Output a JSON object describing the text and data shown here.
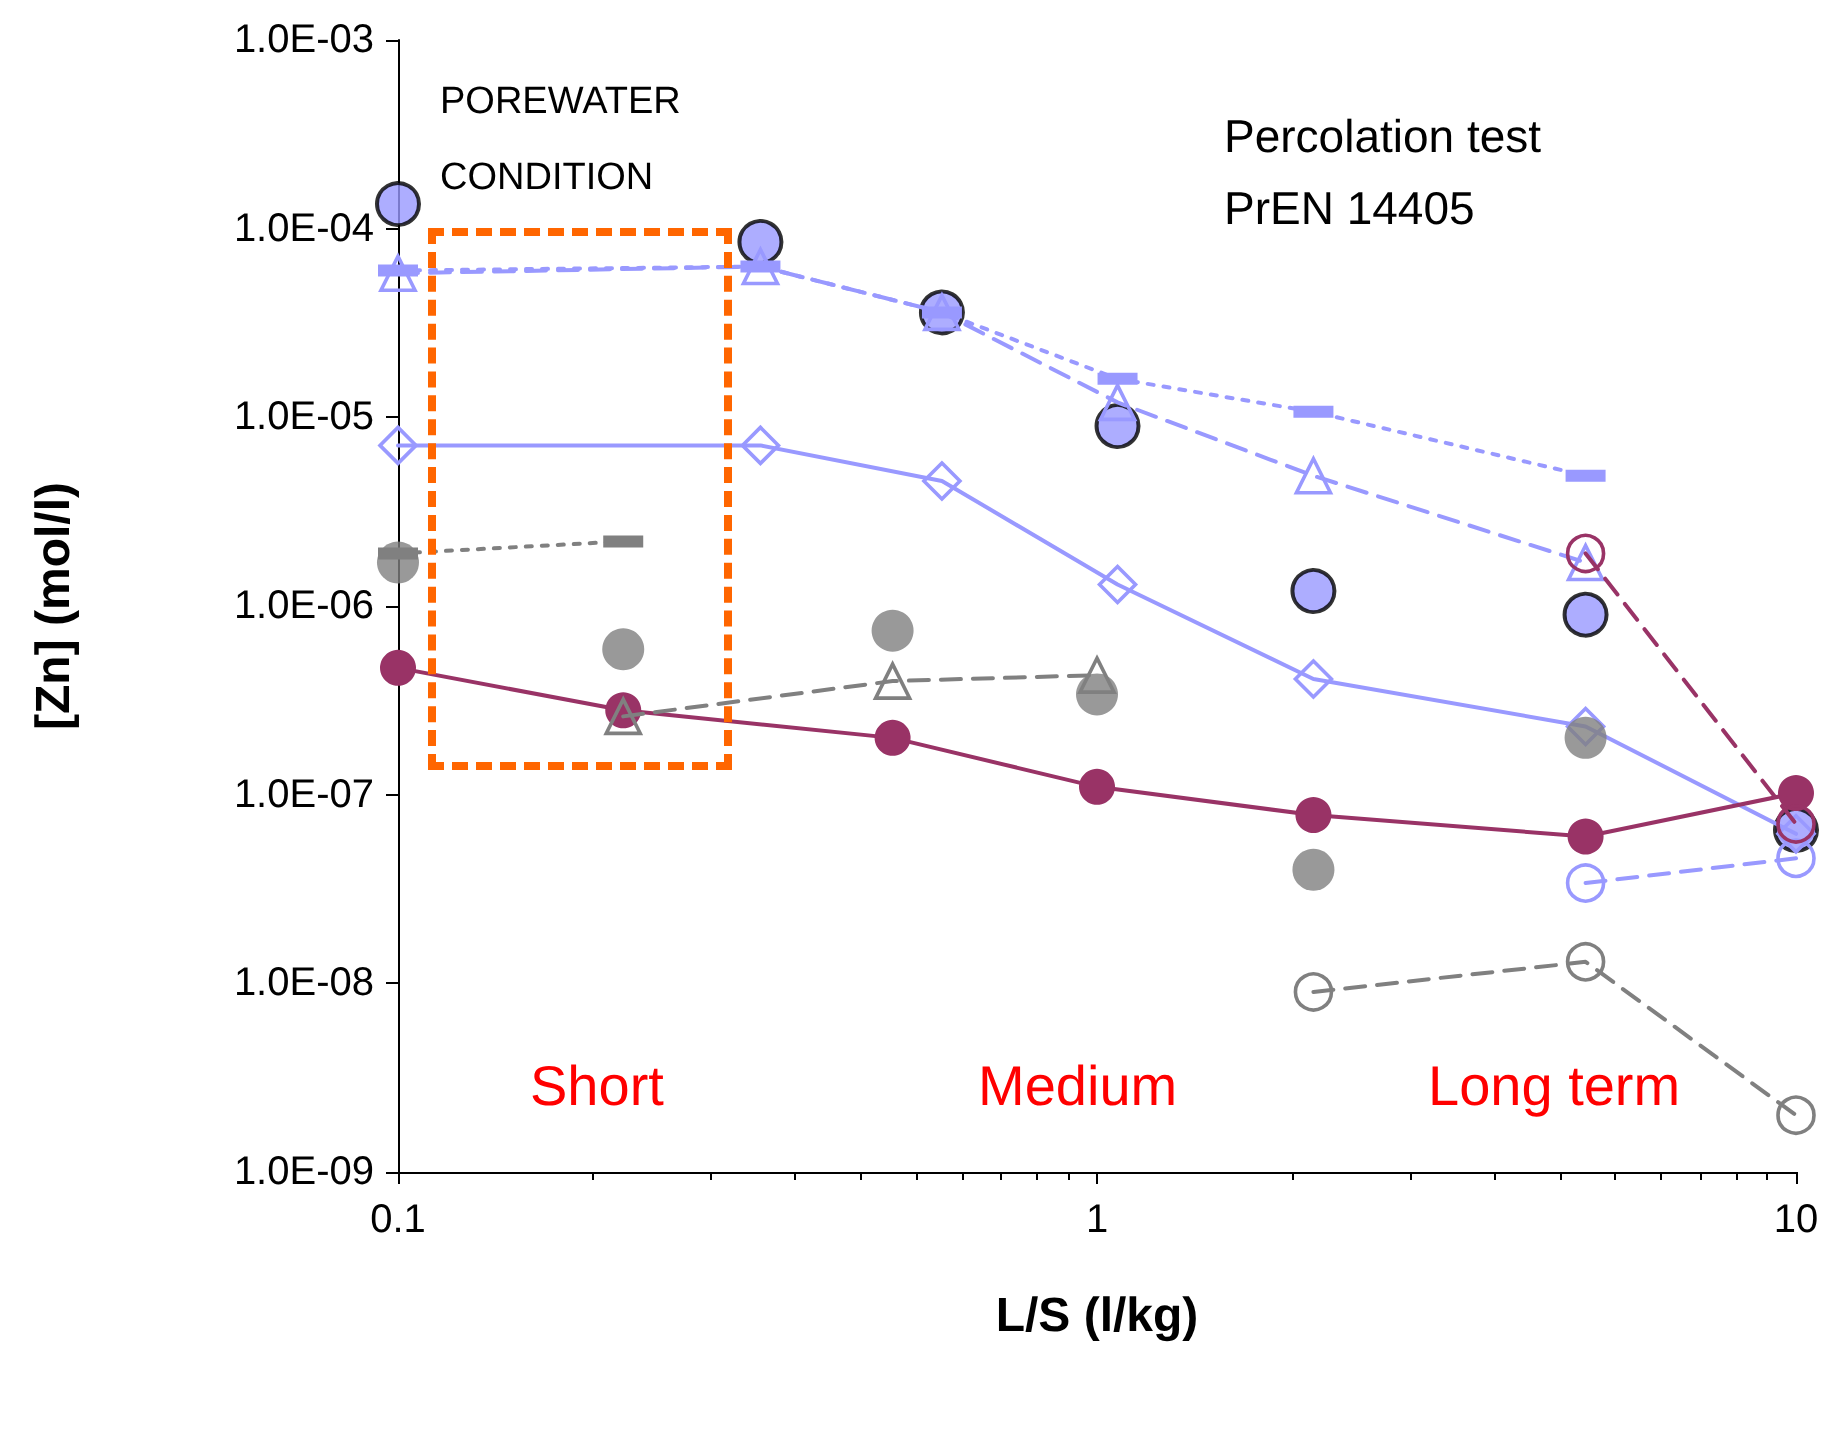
{
  "chart_data": {
    "type": "line",
    "xlabel": "L/S (l/kg)",
    "ylabel": "[Zn] (mol/l)",
    "log": "xy",
    "grid": false,
    "xlim": [
      0.1,
      10
    ],
    "xticks": [
      0.1,
      1,
      10
    ],
    "ylim": [
      1e-09,
      0.001
    ],
    "yticks": [
      {
        "value": 1e-09,
        "label": "1.0E-09"
      },
      {
        "value": 1e-08,
        "label": "1.0E-08"
      },
      {
        "value": 1e-07,
        "label": "1.0E-07"
      },
      {
        "value": 1e-06,
        "label": "1.0E-06"
      },
      {
        "value": 1e-05,
        "label": "1.0E-05"
      },
      {
        "value": 0.0001,
        "label": "1.0E-04"
      },
      {
        "value": 0.001,
        "label": "1.0E-03"
      }
    ],
    "annotations": [
      "POREWATER\nCONDITION",
      "Percolation test\nPrEN 14405",
      "Short",
      "Medium",
      "Long term"
    ],
    "series": [
      {
        "type": "scatter",
        "color": "#9999ff",
        "marker": "circle",
        "x": [
          0.1,
          0.33,
          0.6,
          1.07,
          2.04,
          5,
          10
        ],
        "values": [
          0.000135,
          8.5e-05,
          3.6e-05,
          9e-06,
          1.2e-06,
          9e-07,
          6.5e-08
        ]
      },
      {
        "color": "#9999ff",
        "marker": "triangle",
        "line_style": "dashed",
        "x": [
          0.1,
          0.33,
          0.6,
          1.07,
          2.04,
          5
        ],
        "values": [
          5.8e-05,
          6.3e-05,
          3.6e-05,
          1.2e-05,
          4.9e-06,
          1.7e-06
        ]
      },
      {
        "color": "#9999ff",
        "marker": "square",
        "line_style": "dotted",
        "x": [
          0.1,
          0.33,
          0.6,
          1.07,
          2.04,
          5
        ],
        "values": [
          6e-05,
          6.3e-05,
          3.6e-05,
          1.6e-05,
          1.07e-05,
          4.9e-06
        ]
      },
      {
        "color": "#9999ff",
        "marker": "diamond",
        "line_style": "solid",
        "x": [
          0.1,
          0.33,
          0.6,
          1.07,
          2.04,
          5,
          10
        ],
        "values": [
          7.1e-06,
          7.1e-06,
          4.6e-06,
          1.3e-06,
          4.1e-07,
          2.3e-07,
          6.2e-08
        ]
      },
      {
        "color": "#9999ff",
        "marker": "circle",
        "line_style": "dashed",
        "x": [
          5,
          10
        ],
        "values": [
          3.4e-08,
          4.6e-08
        ]
      },
      {
        "color": "#993366",
        "marker": "circle",
        "line_style": "solid",
        "x": [
          0.1,
          0.21,
          0.51,
          1,
          2.04,
          5,
          10
        ],
        "values": [
          4.7e-07,
          2.8e-07,
          2e-07,
          1.1e-07,
          7.8e-08,
          6e-08,
          1.02e-07
        ]
      },
      {
        "color": "#993366",
        "marker": "circle",
        "line_style": "dashed",
        "x": [
          5,
          10
        ],
        "values": [
          1.9e-06,
          7e-08
        ]
      },
      {
        "type": "scatter",
        "color": "#808080",
        "marker": "circle",
        "x": [
          0.1,
          0.21,
          0.51,
          1,
          2.04,
          5
        ],
        "values": [
          1.7e-06,
          5.9e-07,
          7.4e-07,
          3.4e-07,
          4e-08,
          2e-07
        ]
      },
      {
        "color": "#808080",
        "marker": "square",
        "line_style": "dotted",
        "x": [
          0.1,
          0.21
        ],
        "values": [
          1.9e-06,
          2.2e-06
        ]
      },
      {
        "color": "#808080",
        "marker": "triangle",
        "line_style": "dashed",
        "x": [
          0.21,
          0.51,
          1
        ],
        "values": [
          2.6e-07,
          4e-07,
          4.3e-07
        ]
      },
      {
        "color": "#808080",
        "marker": "circle",
        "line_style": "dashed",
        "x": [
          2.04,
          5,
          10
        ],
        "values": [
          9e-09,
          1.3e-08,
          2e-09
        ]
      }
    ]
  }
}
